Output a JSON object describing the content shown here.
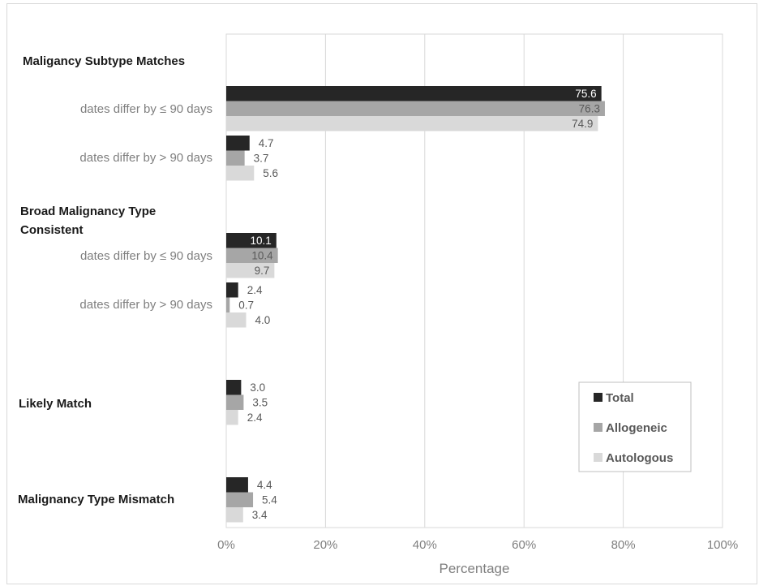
{
  "chart_data": {
    "type": "bar",
    "orientation": "horizontal",
    "xlabel": "Percentage",
    "xlim": [
      0,
      100
    ],
    "x_ticks": [
      "0%",
      "20%",
      "40%",
      "60%",
      "80%",
      "100%"
    ],
    "grid": true,
    "legend_position": "bottom-right",
    "groups": [
      {
        "label": "Maligancy Subtype Matches",
        "bold": true
      },
      {
        "label": "dates differ by ≤ 90 days",
        "bold": false
      },
      {
        "label": "dates differ by > 90 days",
        "bold": false
      },
      {
        "label": "Broad Malignancy Type Consistent",
        "bold": true
      },
      {
        "label": "dates differ by ≤ 90 days",
        "bold": false
      },
      {
        "label": "dates differ by > 90 days",
        "bold": false
      },
      {
        "label": "Likely Match",
        "bold": true
      },
      {
        "label": "Malignancy Type Mismatch",
        "bold": true
      }
    ],
    "categories": [
      "Maligancy Subtype Matches: dates differ by ≤ 90 days",
      "Maligancy Subtype Matches: dates differ by > 90 days",
      "Broad Malignancy Type Consistent: dates differ by ≤ 90 days",
      "Broad Malignancy Type Consistent: dates differ by > 90 days",
      "Likely Match",
      "Malignancy Type Mismatch"
    ],
    "series": [
      {
        "name": "Total",
        "color": "#262626",
        "values": [
          75.6,
          4.7,
          10.1,
          2.4,
          3.0,
          4.4
        ],
        "labels": [
          "75.6",
          "4.7",
          "10.1",
          "2.4",
          "3.0",
          "4.4"
        ]
      },
      {
        "name": "Allogeneic",
        "color": "#a6a6a6",
        "values": [
          76.3,
          3.7,
          10.4,
          0.7,
          3.5,
          5.4
        ],
        "labels": [
          "76.3",
          "3.7",
          "10.4",
          "0.7",
          "3.5",
          "5.4"
        ]
      },
      {
        "name": "Autologous",
        "color": "#d9d9d9",
        "values": [
          74.9,
          5.6,
          9.7,
          4.0,
          2.4,
          3.4
        ],
        "labels": [
          "74.9",
          "5.6",
          "9.7",
          "4.0",
          "2.4",
          "3.4"
        ]
      }
    ]
  }
}
